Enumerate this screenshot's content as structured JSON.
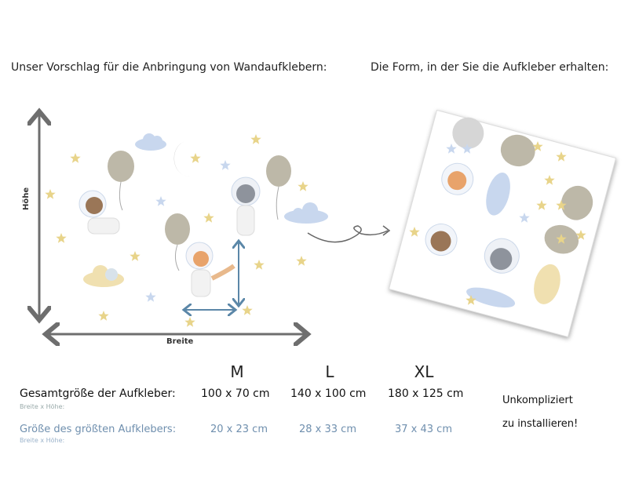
{
  "headings": {
    "suggestion": "Unser Vorschlag für die Anbringung von Wandaufklebern:",
    "form": "Die Form, in der Sie die Aufkleber erhalten:"
  },
  "diagram": {
    "height_label": "Höhe",
    "width_label": "Breite"
  },
  "sizes": {
    "columns": [
      "M",
      "L",
      "XL"
    ],
    "total_label": "Gesamtgröße der Aufkleber:",
    "total_sub": "Breite x Höhe:",
    "total_values": [
      "100 x 70 cm",
      "140 x 100 cm",
      "180 x 125 cm"
    ],
    "largest_label": "Größe des größten Aufklebers:",
    "largest_sub": "Breite x Höhe:",
    "largest_values": [
      "20 x 23 cm",
      "28 x 33 cm",
      "37 x 43 cm"
    ]
  },
  "note": {
    "line1": "Unkompliziert",
    "line2": "zu installieren!"
  },
  "colors": {
    "arrow_gray": "#6e6e6e",
    "measure_blue": "#5b87a8",
    "star": "#e8d48a",
    "balloon": "#bdb8a8",
    "cloud_blue": "#c8d7ee",
    "size_blue": "#6f8fae"
  }
}
